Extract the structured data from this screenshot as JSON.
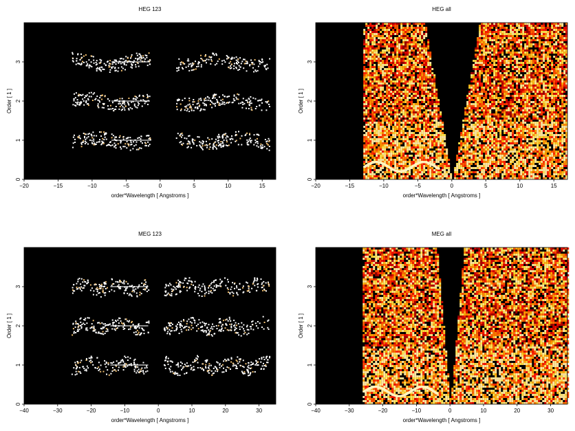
{
  "chart_data": [
    {
      "type": "heatmap",
      "title": "HEG 123",
      "xlabel": "order*Wavelength [ Angstroms ]",
      "ylabel": "Order [ 1 ]",
      "xlim": [
        -20,
        17
      ],
      "ylim": [
        0,
        4
      ],
      "xticks": [
        -20,
        -15,
        -10,
        -5,
        0,
        5,
        10,
        15
      ],
      "yticks": [
        0,
        1,
        2,
        3
      ],
      "background": "#000000",
      "colormap": "hot",
      "style": "sparse",
      "orders": [
        1,
        2,
        3
      ],
      "order_extent": [
        -13,
        16
      ],
      "gap": [
        -1.5,
        2.3
      ]
    },
    {
      "type": "heatmap",
      "title": "HEG all",
      "xlabel": "order*Wavelength [ Angstroms ]",
      "ylabel": "Order [ 1 ]",
      "xlim": [
        -20,
        17
      ],
      "ylim": [
        0,
        4
      ],
      "xticks": [
        -20,
        -15,
        -10,
        -5,
        0,
        5,
        10,
        15
      ],
      "yticks": [
        0,
        1,
        2,
        3
      ],
      "background": "#000000",
      "colormap": "hot",
      "style": "dense",
      "order_extent": [
        -13,
        17
      ],
      "wedge": [
        0,
        4
      ]
    },
    {
      "type": "heatmap",
      "title": "MEG 123",
      "xlabel": "order*Wavelength [ Angstroms ]",
      "ylabel": "Order [ 1 ]",
      "xlim": [
        -40,
        35
      ],
      "ylim": [
        0,
        4
      ],
      "xticks": [
        -40,
        -30,
        -20,
        -10,
        0,
        10,
        20,
        30
      ],
      "yticks": [
        0,
        1,
        2,
        3
      ],
      "background": "#000000",
      "colormap": "hot",
      "style": "sparse",
      "orders": [
        1,
        2,
        3
      ],
      "order_extent": [
        -26,
        33
      ],
      "gap": [
        -3,
        1.5
      ]
    },
    {
      "type": "heatmap",
      "title": "MEG all",
      "xlabel": "order*Wavelength [ Angstroms ]",
      "ylabel": "Order [ 1 ]",
      "xlim": [
        -40,
        35
      ],
      "ylim": [
        0,
        4
      ],
      "xticks": [
        -40,
        -30,
        -20,
        -10,
        0,
        10,
        20,
        30
      ],
      "yticks": [
        0,
        1,
        2,
        3
      ],
      "background": "#000000",
      "colormap": "hot",
      "style": "dense",
      "order_extent": [
        -26,
        35
      ],
      "wedge": [
        0,
        4
      ]
    }
  ]
}
